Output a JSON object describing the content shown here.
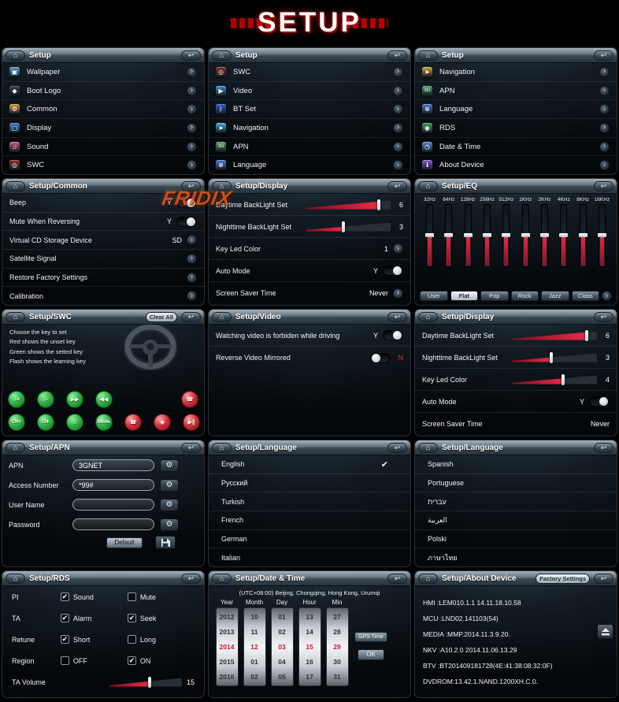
{
  "title": "SETUP",
  "watermark": "FRIDIX",
  "chrome": {
    "home_icon": "⌂",
    "back_icon": "↩",
    "chevron_icon": "›",
    "gear_icon": "⚙",
    "check_icon": "✔"
  },
  "panels": [
    {
      "header": "Setup",
      "type": "menu",
      "items": [
        {
          "label": "Wallpaper",
          "icon": "wallpaper-icon",
          "glyph": "▣",
          "color": "#4aa3cc"
        },
        {
          "label": "Boot Logo",
          "icon": "boot-logo-icon",
          "glyph": "◆",
          "color": "#2e3c48"
        },
        {
          "label": "Common",
          "icon": "common-settings-icon",
          "glyph": "⚙",
          "color": "#d89a3a"
        },
        {
          "label": "Display",
          "icon": "display-icon",
          "glyph": "▢",
          "color": "#3a7ccc"
        },
        {
          "label": "Sound",
          "icon": "sound-icon",
          "glyph": "♫",
          "color": "#cc5a7a"
        },
        {
          "label": "SWC",
          "icon": "steering-wheel-icon",
          "glyph": "◎",
          "color": "#8a2a2a"
        }
      ]
    },
    {
      "header": "Setup",
      "type": "menu",
      "items": [
        {
          "label": "SWC",
          "icon": "steering-wheel-icon",
          "glyph": "◎",
          "color": "#8a2a2a"
        },
        {
          "label": "Video",
          "icon": "video-icon",
          "glyph": "▶",
          "color": "#3a8ccc"
        },
        {
          "label": "BT Set",
          "icon": "bluetooth-icon",
          "glyph": "ᛒ",
          "color": "#2a5ad0"
        },
        {
          "label": "Navigation",
          "icon": "navigation-icon",
          "glyph": "➤",
          "color": "#3db0d8"
        },
        {
          "label": "APN",
          "icon": "apn-icon",
          "glyph": "3G",
          "color": "#3da05a"
        },
        {
          "label": "Language",
          "icon": "language-icon",
          "glyph": "⊕",
          "color": "#4a7ad4"
        }
      ]
    },
    {
      "header": "Setup",
      "type": "menu",
      "items": [
        {
          "label": "Navigation",
          "icon": "navigation-icon",
          "glyph": "➤",
          "color": "#d8a33d"
        },
        {
          "label": "APN",
          "icon": "apn-icon",
          "glyph": "3G",
          "color": "#3da05a"
        },
        {
          "label": "Language",
          "icon": "language-icon",
          "glyph": "⊕",
          "color": "#4a7ad4"
        },
        {
          "label": "RDS",
          "icon": "rds-icon",
          "glyph": "◉",
          "color": "#3d9a5a"
        },
        {
          "label": "Date & Time",
          "icon": "date-time-icon",
          "glyph": "◷",
          "color": "#5a8ad4"
        },
        {
          "label": "About Device",
          "icon": "about-device-icon",
          "glyph": "ℹ",
          "color": "#8a5ad4"
        }
      ]
    },
    {
      "header": "Setup/Common",
      "type": "settings",
      "rows": [
        {
          "label": "Beep",
          "control": "toggle",
          "value": "Y",
          "state": "on"
        },
        {
          "label": "Mute When Reversing",
          "control": "toggle",
          "value": "Y",
          "state": "on"
        },
        {
          "label": "Virtual CD Storage Device",
          "control": "chevron",
          "value": "SD"
        },
        {
          "label": "Satellite Signal",
          "control": "chevron"
        },
        {
          "label": "Restore Factory Settings",
          "control": "chevron"
        },
        {
          "label": "Calibration",
          "control": "chevron"
        }
      ]
    },
    {
      "header": "Setup/Display",
      "type": "settings",
      "rows": [
        {
          "label": "Daytime BackLight Set",
          "control": "slider",
          "value": "6",
          "pct": 86
        },
        {
          "label": "Nighttime BackLight Set",
          "control": "slider",
          "value": "3",
          "pct": 44
        },
        {
          "label": "Key Led Color",
          "control": "chevron",
          "value": "1"
        },
        {
          "label": "Auto Mode",
          "control": "toggle",
          "value": "Y",
          "state": "on"
        },
        {
          "label": "Screen Saver Time",
          "control": "chevron",
          "value": "Never"
        }
      ]
    },
    {
      "header": "Setup/EQ",
      "type": "eq",
      "bands": [
        {
          "label": "32Hz",
          "level": 50
        },
        {
          "label": "64Hz",
          "level": 50
        },
        {
          "label": "128Hz",
          "level": 50
        },
        {
          "label": "256Hz",
          "level": 50
        },
        {
          "label": "512Hz",
          "level": 50
        },
        {
          "label": "1KHz",
          "level": 50
        },
        {
          "label": "2KHz",
          "level": 50
        },
        {
          "label": "4KHz",
          "level": 50
        },
        {
          "label": "8KHz",
          "level": 50
        },
        {
          "label": "16KHz",
          "level": 50
        }
      ],
      "presets": [
        {
          "label": "User",
          "active": false
        },
        {
          "label": "Flat",
          "active": true
        },
        {
          "label": "Pop",
          "active": false
        },
        {
          "label": "Rock",
          "active": false
        },
        {
          "label": "Jazz",
          "active": false
        },
        {
          "label": "Class",
          "active": false
        }
      ]
    },
    {
      "header": "Setup/SWC",
      "type": "swc",
      "clear_button": "Clear All",
      "instructions": [
        "Choose the key to set",
        "Red shows the unset key",
        "Green shows the setted key",
        "Flash shows the learning key"
      ],
      "buttons_row1": [
        {
          "name": "volume-up-button",
          "glyph": "♪+",
          "color": "green"
        },
        {
          "name": "volume-down-button",
          "glyph": "♪-",
          "color": "green"
        },
        {
          "name": "next-track-button",
          "glyph": "▶▶",
          "color": "green"
        },
        {
          "name": "prev-track-button",
          "glyph": "◀◀",
          "color": "green"
        },
        {
          "name": "answer-call-button",
          "glyph": "☎",
          "color": "red",
          "push": true
        }
      ],
      "buttons_row2": [
        {
          "name": "channel-up-button",
          "glyph": "CH+",
          "color": "green"
        },
        {
          "name": "channel-down-button",
          "glyph": "CH-",
          "color": "green"
        },
        {
          "name": "speaker-button",
          "glyph": "♫",
          "color": "green"
        },
        {
          "name": "mode-button",
          "glyph": "Mode",
          "color": "green"
        },
        {
          "name": "hangup-call-button",
          "glyph": "☎",
          "color": "red",
          "push": true
        },
        {
          "name": "power-button",
          "glyph": "◉",
          "color": "red"
        },
        {
          "name": "play-pause-button",
          "glyph": "▶∥",
          "color": "red"
        }
      ]
    },
    {
      "header": "Setup/Video",
      "type": "settings",
      "rows": [
        {
          "label": "Watching video is forbiden while driving",
          "control": "toggle",
          "value": "Y",
          "state": "on"
        },
        {
          "label": "Reverse Video Mirrored",
          "control": "toggle",
          "value": "N",
          "state": "off",
          "value_after": true,
          "value_color": "#e03030"
        }
      ]
    },
    {
      "header": "Setup/Display",
      "type": "settings",
      "rows": [
        {
          "label": "Daytime BackLight Set",
          "control": "slider",
          "value": "6",
          "pct": 88
        },
        {
          "label": "Nighttime BackLight Set",
          "control": "slider",
          "value": "3",
          "pct": 46
        },
        {
          "label": "Key Led Color",
          "control": "slider",
          "value": "4",
          "pct": 60
        },
        {
          "label": "Auto Mode",
          "control": "toggle",
          "value": "Y",
          "state": "on"
        },
        {
          "label": "Screen Saver Time",
          "control": "text",
          "value": "Never"
        }
      ]
    },
    {
      "header": "Setup/APN",
      "type": "apn",
      "fields": [
        {
          "label": "APN",
          "value": "3GNET"
        },
        {
          "label": "Access Number",
          "value": "*99#"
        },
        {
          "label": "User Name",
          "value": ""
        },
        {
          "label": "Password",
          "value": ""
        }
      ],
      "default_button": "Default"
    },
    {
      "header": "Setup/Language",
      "type": "lang",
      "items": [
        {
          "label": "English",
          "checked": true
        },
        {
          "label": "Русский",
          "checked": false
        },
        {
          "label": "Turkish",
          "checked": false
        },
        {
          "label": "French",
          "checked": false
        },
        {
          "label": "German",
          "checked": false
        },
        {
          "label": "Italian",
          "checked": false
        }
      ]
    },
    {
      "header": "Setup/Language",
      "type": "lang",
      "items": [
        {
          "label": "Spanish",
          "checked": false
        },
        {
          "label": "Portuguese",
          "checked": false
        },
        {
          "label": "עברית",
          "checked": false
        },
        {
          "label": "العربية",
          "checked": false
        },
        {
          "label": "Polski",
          "checked": false
        },
        {
          "label": "ภาษาไทย",
          "checked": false
        }
      ]
    },
    {
      "header": "Setup/RDS",
      "type": "rds",
      "rows": [
        {
          "label": "PI",
          "options": [
            {
              "label": "Sound",
              "checked": true
            },
            {
              "label": "Mute",
              "checked": false
            }
          ]
        },
        {
          "label": "TA",
          "options": [
            {
              "label": "Alarm",
              "checked": true
            },
            {
              "label": "Seek",
              "checked": true
            }
          ]
        },
        {
          "label": "Retune",
          "options": [
            {
              "label": "Short",
              "checked": true
            },
            {
              "label": "Long",
              "checked": false
            }
          ]
        },
        {
          "label": "Region",
          "options": [
            {
              "label": "OFF",
              "checked": false
            },
            {
              "label": "ON",
              "checked": true
            }
          ]
        }
      ],
      "volume": {
        "label": "TA Volume",
        "value": "15",
        "pct": 55
      }
    },
    {
      "header": "Setup/Date & Time",
      "type": "datetime",
      "timezone": "(UTC+08:00) Beijing, Chongqing, Hong Kong, Urumqi",
      "columns": [
        {
          "label": "Year",
          "values": [
            "2012",
            "2013",
            "2014",
            "2015",
            "2016"
          ],
          "selected": 2
        },
        {
          "label": "Month",
          "values": [
            "10",
            "11",
            "12",
            "01",
            "02"
          ],
          "selected": 2
        },
        {
          "label": "Day",
          "values": [
            "01",
            "02",
            "03",
            "04",
            "05"
          ],
          "selected": 2
        },
        {
          "label": "Hour",
          "values": [
            "13",
            "14",
            "15",
            "16",
            "17"
          ],
          "selected": 2
        },
        {
          "label": "Min",
          "values": [
            "27",
            "28",
            "29",
            "30",
            "31"
          ],
          "selected": 2
        }
      ],
      "gps_button": "GPS Time",
      "ok_button": "OK"
    },
    {
      "header": "Setup/About Device",
      "type": "about",
      "factory_button": "Factory Settings",
      "lines": [
        "HMI  :LEM010.1.1  14.11.18.10.58",
        "MCU :LND02.141103(54)",
        "MEDIA :MMP.2014.11.3.9.20.",
        "NKV :A10.2.0 2014.11.06.13.29",
        "BTV :BT201409181728(4E:41:38:08:32:0F)",
        "DVDROM:13.42.1.NAND.1200XH.C.0."
      ]
    }
  ]
}
